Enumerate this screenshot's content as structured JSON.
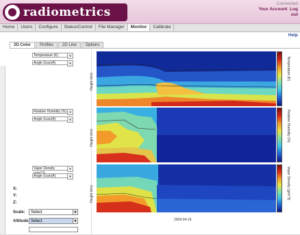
{
  "app": {
    "logo_text": "radiometrics"
  },
  "user_area": {
    "connected": "Connected",
    "account_link": "Your Account",
    "logout_link": "Log",
    "extra_link": "out"
  },
  "nav": {
    "tabs": [
      {
        "label": "Home"
      },
      {
        "label": "Users"
      },
      {
        "label": "Configure"
      },
      {
        "label": "Status/Control"
      },
      {
        "label": "File Manager"
      },
      {
        "label": "Monitor",
        "active": true
      },
      {
        "label": "Calibrate"
      }
    ],
    "help": "Help"
  },
  "subtabs": [
    {
      "label": "2D Color",
      "active": true
    },
    {
      "label": "Profiles"
    },
    {
      "label": "2D Line"
    },
    {
      "label": "Options"
    }
  ],
  "plots": [
    {
      "variable": "Temperature (K)",
      "scale_mode": "Angle Scan(A)",
      "colorbar_label": "Temperature (K)",
      "ylabel": "Height (km)"
    },
    {
      "variable": "Relative Humidity (%)",
      "scale_mode": "Angle Scan(A)",
      "colorbar_label": "Relative Humidity (%)",
      "ylabel": "Height (km)"
    },
    {
      "variable": "Vapor Density (g/m^3)",
      "scale_mode": "Angle Scan(A)",
      "colorbar_label": "Vapor Density (g/m^3)",
      "ylabel": "Height (km)"
    }
  ],
  "readouts": {
    "x": "X:",
    "y": "Y:",
    "z": "Z:"
  },
  "scale": {
    "label": "Scale:",
    "value": "Select"
  },
  "altitude": {
    "label": "Altitude:",
    "value": "Select"
  },
  "xaxis": {
    "label": "2009-04-16"
  },
  "colors": {
    "header_accent": "#6b1248",
    "link": "#7a1650"
  }
}
